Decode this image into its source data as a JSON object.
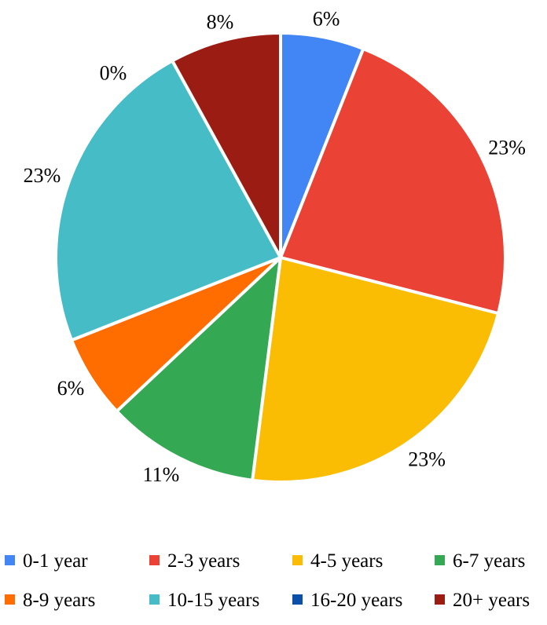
{
  "chart_data": {
    "type": "pie",
    "categories": [
      "0-1 year",
      "2-3 years",
      "4-5 years",
      "6-7 years",
      "8-9 years",
      "10-15 years",
      "16-20 years",
      "20+ years"
    ],
    "values": [
      6,
      23,
      23,
      11,
      6,
      23,
      0,
      8
    ],
    "data_labels": [
      "6%",
      "23%",
      "23%",
      "11%",
      "6%",
      "23%",
      "0%",
      "8%"
    ],
    "colors": [
      "#4285F4",
      "#EA4335",
      "#FBBC04",
      "#34A853",
      "#FF6D01",
      "#46BDC6",
      "#0B4FA8",
      "#9A1C12"
    ],
    "legend_position": "bottom",
    "start_angle": "top, clockwise"
  }
}
